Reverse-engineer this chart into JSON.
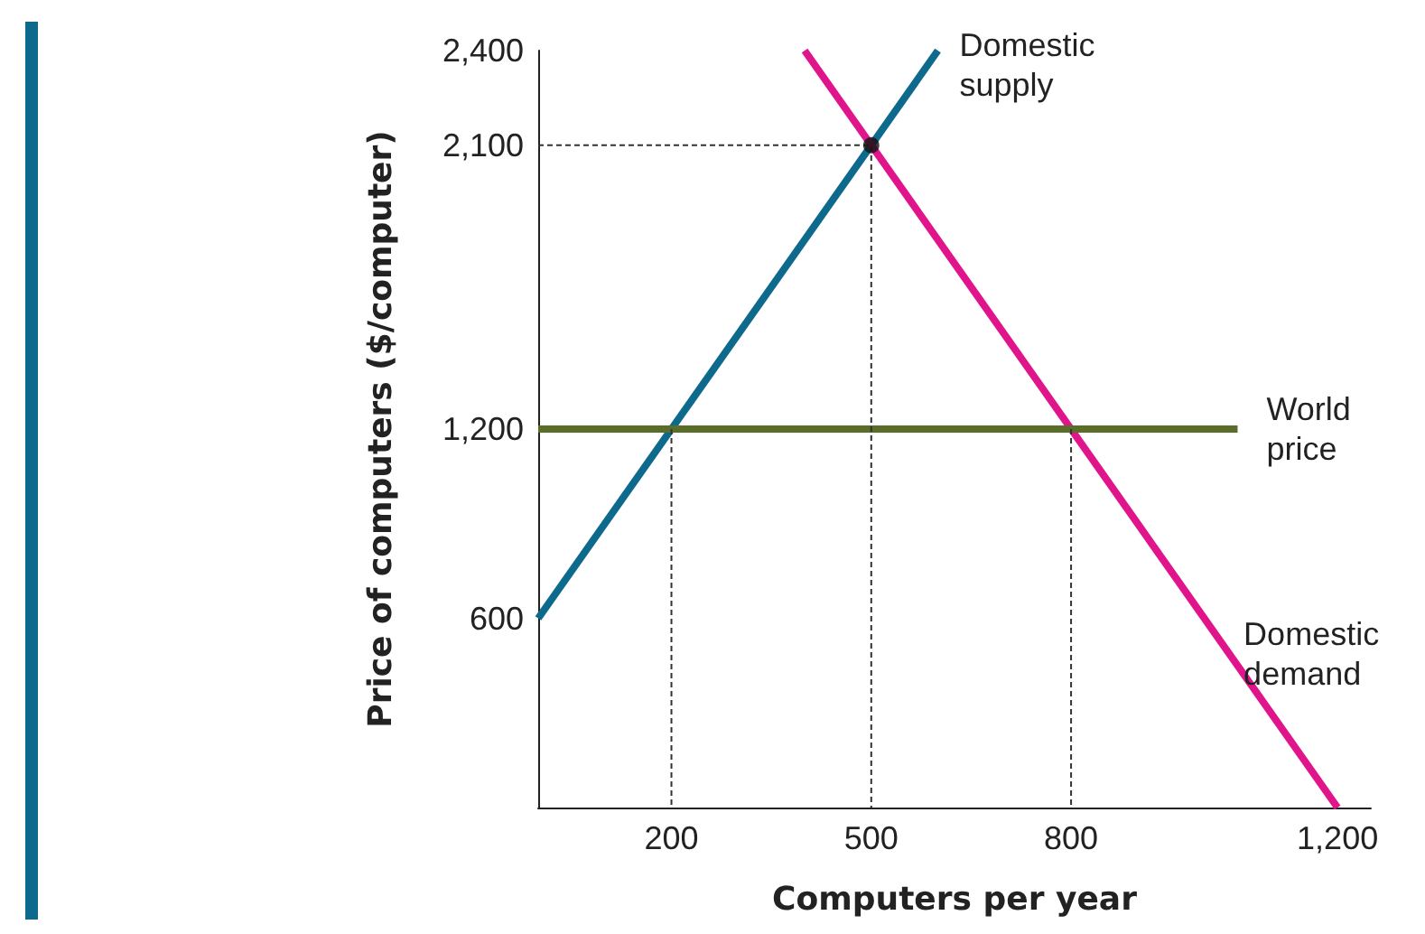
{
  "chart_data": {
    "type": "line",
    "xlabel": "Computers per year",
    "ylabel": "Price of computers ($/computer)",
    "xlim": [
      0,
      1250
    ],
    "xticks": [
      200,
      500,
      800,
      {
        "value": 1200,
        "label": "1,200"
      }
    ],
    "ylim": [
      0,
      2400
    ],
    "yticks": [
      600,
      {
        "value": 1200,
        "label": "1,200"
      },
      {
        "value": 2100,
        "label": "2,100"
      },
      {
        "value": 2400,
        "label": "2,400"
      }
    ],
    "grid": false,
    "legend": false,
    "marker": "none",
    "line_style": "solid",
    "series": [
      {
        "name": "Domestic supply",
        "color": "#0e6a8c",
        "x": [
          0,
          600
        ],
        "values": [
          600,
          2400
        ]
      },
      {
        "name": "Domestic demand",
        "color": "#e0158c",
        "x": [
          400,
          1200
        ],
        "values": [
          2400,
          0
        ]
      },
      {
        "name": "World price",
        "color": "#5a6e2a",
        "x": [
          0,
          1050
        ],
        "values": [
          1200,
          1200
        ]
      },
      {
        "color": "#333333",
        "line_style": "dashed",
        "x": [
          0,
          500,
          500
        ],
        "values": [
          2100,
          2100,
          0
        ]
      },
      {
        "color": "#333333",
        "line_style": "dashed",
        "x": [
          200,
          200
        ],
        "values": [
          1200,
          0
        ]
      },
      {
        "color": "#333333",
        "line_style": "dashed",
        "x": [
          800,
          800
        ],
        "values": [
          1200,
          0
        ]
      },
      {
        "type": "scatter",
        "color": "#111111",
        "marker": "circle",
        "x": [
          500
        ],
        "values": [
          2100
        ]
      }
    ]
  }
}
